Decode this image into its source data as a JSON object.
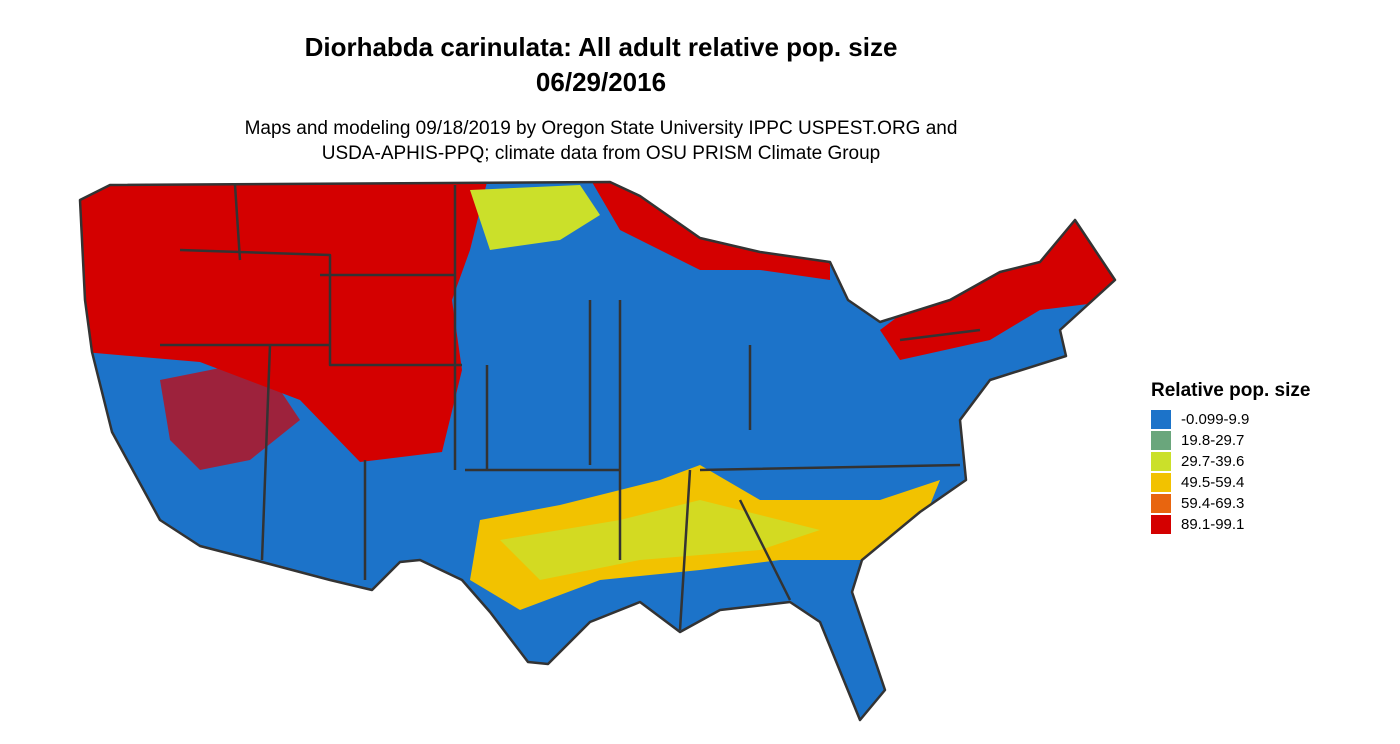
{
  "title": [
    "Diorhabda carinulata: All adult relative pop. size",
    "06/29/2016"
  ],
  "subtitle": [
    "Maps and modeling 09/18/2019 by Oregon State University IPPC USPEST.ORG and",
    "USDA-APHIS-PPQ; climate data from OSU PRISM Climate Group"
  ],
  "legend": {
    "title": "Relative pop. size",
    "items": [
      {
        "label": "-0.099-9.9",
        "color": "#1c73c9"
      },
      {
        "label": "19.8-29.7",
        "color": "#6aa67c"
      },
      {
        "label": "29.7-39.6",
        "color": "#cbe02a"
      },
      {
        "label": "49.5-59.4",
        "color": "#f2c200"
      },
      {
        "label": "59.4-69.3",
        "color": "#e8650f"
      },
      {
        "label": "89.1-99.1",
        "color": "#d40000"
      }
    ]
  }
}
